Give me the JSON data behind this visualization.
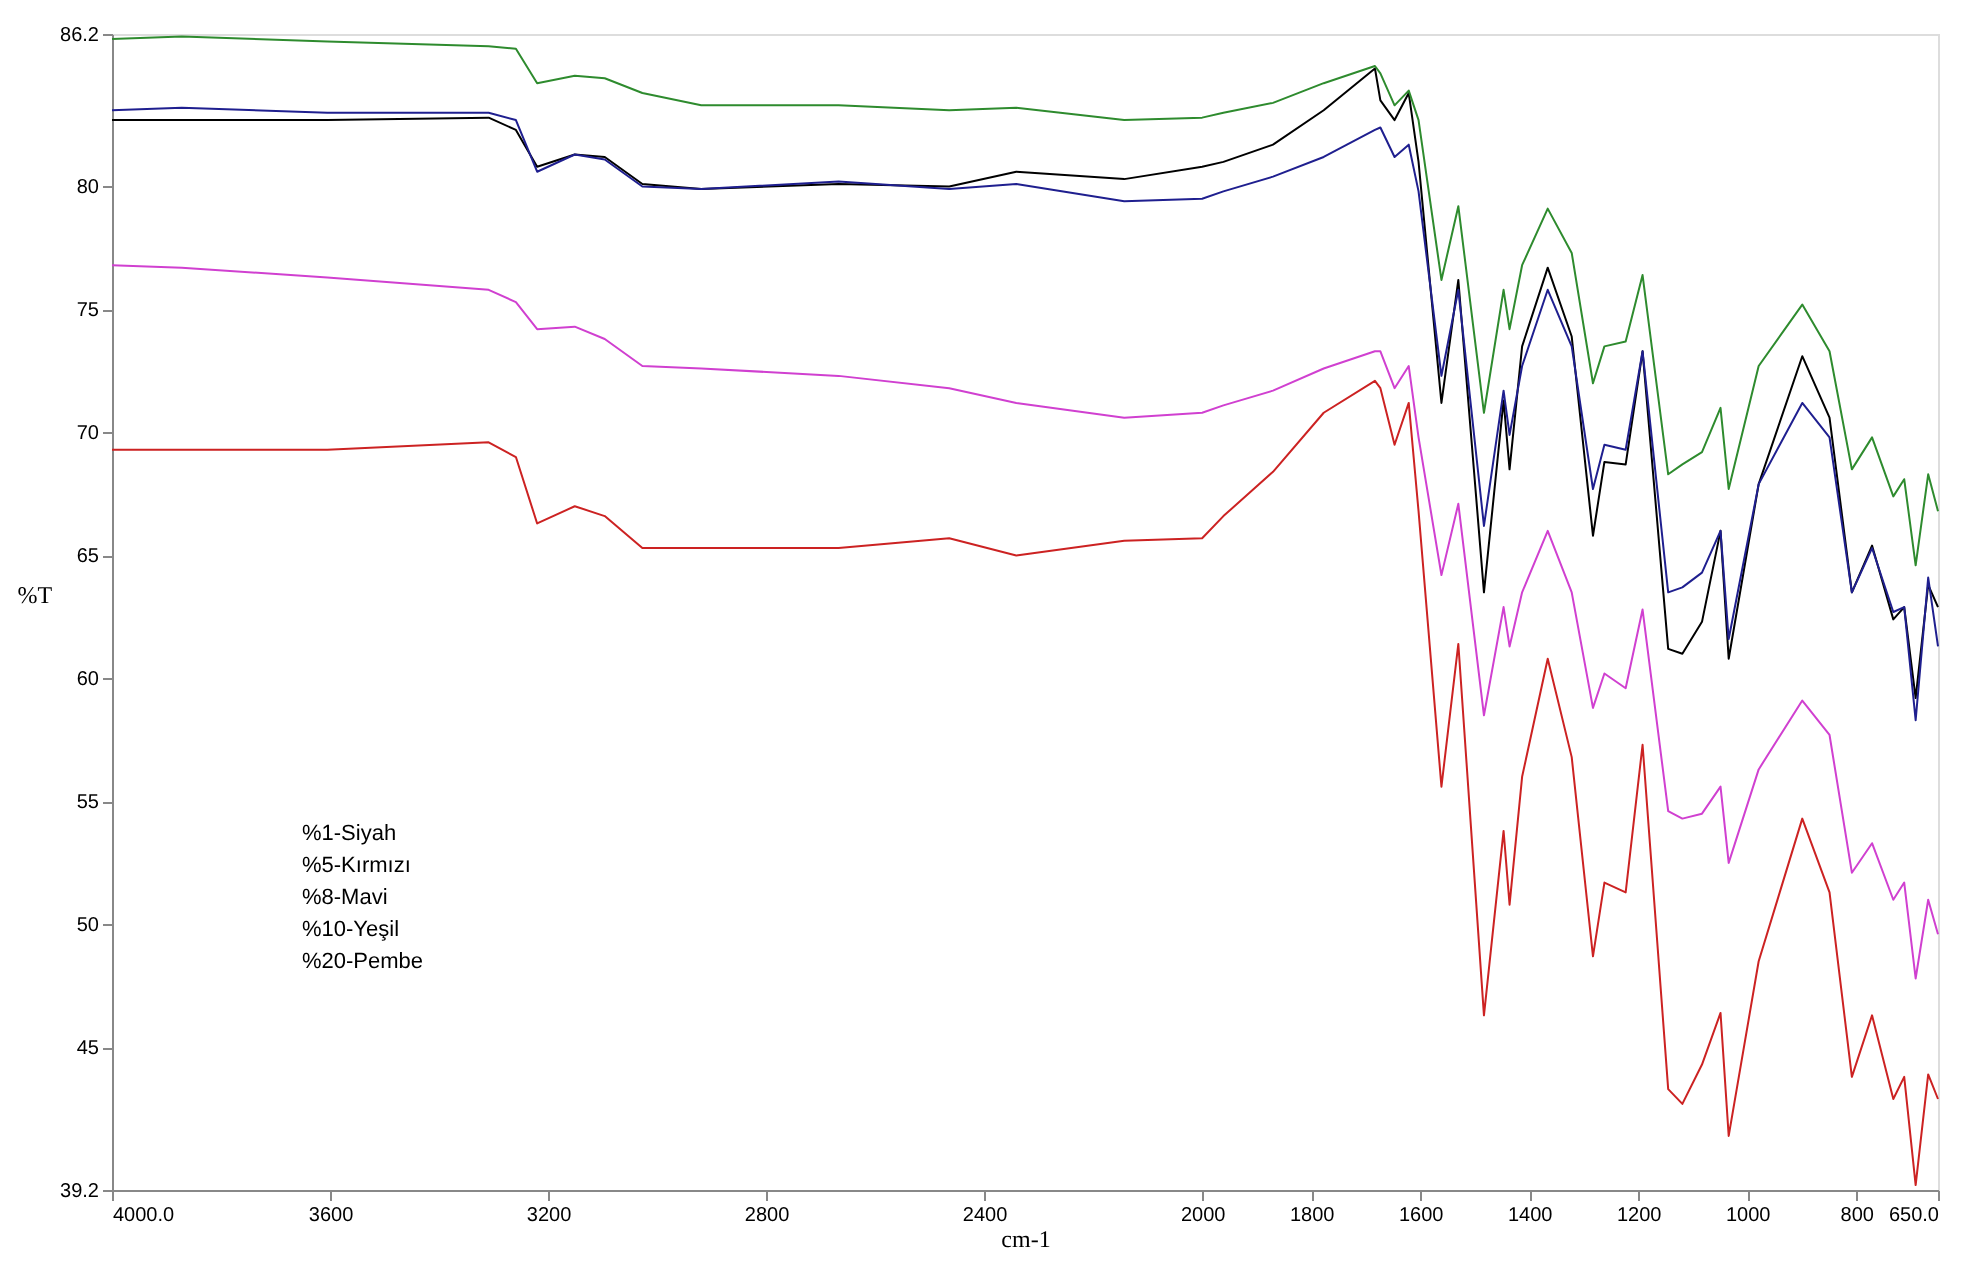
{
  "chart_data": {
    "type": "line",
    "xlabel": "cm-1",
    "ylabel": "%T",
    "xlim": [
      4000,
      650
    ],
    "ylim": [
      39.2,
      86.2
    ],
    "xticks": [
      {
        "value": 4000,
        "label": "4000.0"
      },
      3600,
      3200,
      2800,
      2400,
      2000,
      1800,
      1600,
      1400,
      1200,
      1000,
      800,
      {
        "value": 650,
        "label": "650.0"
      }
    ],
    "yticks": [
      39.2,
      45,
      50,
      55,
      60,
      65,
      70,
      75,
      80,
      86.2
    ],
    "annotations": [
      "%1-Siyah",
      "%5-Kırmızı",
      "%8-Mavi",
      "%10-Yeşil",
      "%20-Pembe"
    ],
    "x": [
      4000,
      3872,
      3605,
      3309,
      3259,
      3220,
      3151,
      3096,
      3027,
      2919,
      2667,
      2464,
      2341,
      2143,
      2000,
      1961,
      1870,
      1777,
      1683,
      1673,
      1647,
      1621,
      1603,
      1561,
      1530,
      1483,
      1447,
      1436,
      1413,
      1366,
      1322,
      1283,
      1262,
      1223,
      1192,
      1145,
      1119,
      1083,
      1049,
      1034,
      979,
      899,
      849,
      808,
      771,
      732,
      712,
      691,
      668,
      650
    ],
    "series": [
      {
        "color": "#000000",
        "values": [
          82.7,
          82.7,
          82.7,
          82.8,
          82.3,
          80.8,
          81.3,
          81.2,
          80.1,
          79.9,
          80.1,
          80.0,
          80.6,
          80.3,
          80.8,
          81.0,
          81.7,
          83.1,
          84.8,
          83.5,
          82.7,
          83.8,
          81.0,
          71.2,
          76.2,
          63.5,
          71.3,
          68.5,
          73.5,
          76.7,
          73.9,
          65.8,
          68.8,
          68.7,
          73.3,
          61.2,
          61.0,
          62.3,
          66.0,
          60.8,
          67.9,
          73.1,
          70.6,
          63.5,
          65.4,
          62.4,
          62.9,
          59.2,
          63.8,
          62.9
        ]
      },
      {
        "color": "#cc2222",
        "values": [
          69.3,
          69.3,
          69.3,
          69.6,
          69.0,
          66.3,
          67.0,
          66.6,
          65.3,
          65.3,
          65.3,
          65.7,
          65.0,
          65.6,
          65.7,
          66.6,
          68.4,
          70.8,
          72.1,
          71.8,
          69.5,
          71.2,
          66.8,
          55.6,
          61.4,
          46.3,
          53.8,
          50.8,
          56.0,
          60.8,
          56.8,
          48.7,
          51.7,
          51.3,
          57.3,
          43.3,
          42.7,
          44.3,
          46.4,
          41.4,
          48.5,
          54.3,
          51.3,
          43.8,
          46.3,
          42.9,
          43.8,
          39.4,
          43.9,
          42.9
        ]
      },
      {
        "color": "#1f1f8f",
        "values": [
          83.1,
          83.2,
          83.0,
          83.0,
          82.7,
          80.6,
          81.3,
          81.1,
          80.0,
          79.9,
          80.2,
          79.9,
          80.1,
          79.4,
          79.5,
          79.8,
          80.4,
          81.2,
          82.3,
          82.4,
          81.2,
          81.7,
          79.8,
          72.3,
          75.8,
          66.2,
          71.7,
          69.9,
          72.7,
          75.8,
          73.5,
          67.7,
          69.5,
          69.3,
          73.3,
          63.5,
          63.7,
          64.3,
          66.0,
          61.6,
          67.9,
          71.2,
          69.8,
          63.5,
          65.3,
          62.7,
          62.9,
          58.3,
          64.1,
          61.3
        ]
      },
      {
        "color": "#2e8b2e",
        "values": [
          86.0,
          86.1,
          85.9,
          85.7,
          85.6,
          84.2,
          84.5,
          84.4,
          83.8,
          83.3,
          83.3,
          83.1,
          83.2,
          82.7,
          82.8,
          83.0,
          83.4,
          84.2,
          84.9,
          84.6,
          83.3,
          83.9,
          82.7,
          76.2,
          79.2,
          70.8,
          75.8,
          74.2,
          76.8,
          79.1,
          77.3,
          72.0,
          73.5,
          73.7,
          76.4,
          68.3,
          68.7,
          69.2,
          71.0,
          67.7,
          72.7,
          75.2,
          73.3,
          68.5,
          69.8,
          67.4,
          68.1,
          64.6,
          68.3,
          66.8
        ]
      },
      {
        "color": "#d040d0",
        "values": [
          76.8,
          76.7,
          76.3,
          75.8,
          75.3,
          74.2,
          74.3,
          73.8,
          72.7,
          72.6,
          72.3,
          71.8,
          71.2,
          70.6,
          70.8,
          71.1,
          71.7,
          72.6,
          73.3,
          73.3,
          71.8,
          72.7,
          69.8,
          64.2,
          67.1,
          58.5,
          62.9,
          61.3,
          63.5,
          66.0,
          63.5,
          58.8,
          60.2,
          59.6,
          62.8,
          54.6,
          54.3,
          54.5,
          55.6,
          52.5,
          56.3,
          59.1,
          57.7,
          52.1,
          53.3,
          51.0,
          51.7,
          47.8,
          51.0,
          49.6
        ]
      }
    ]
  }
}
